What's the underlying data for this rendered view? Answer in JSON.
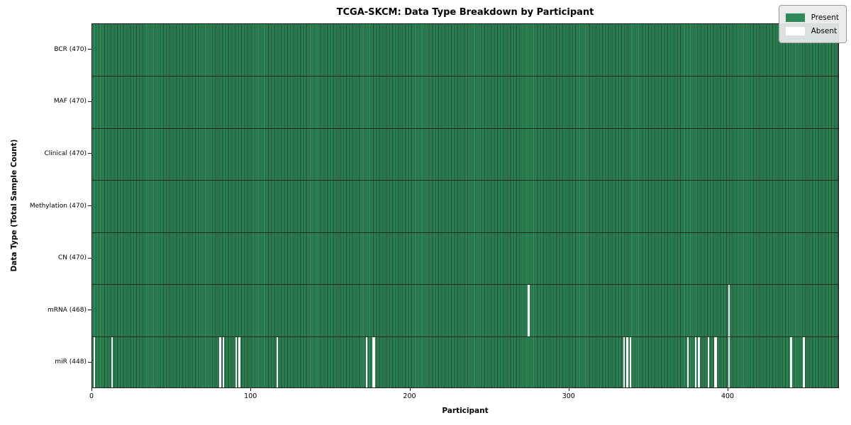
{
  "chart_data": {
    "type": "heatmap",
    "title": "TCGA-SKCM: Data Type Breakdown by Participant",
    "xlabel": "Participant",
    "ylabel": "Data Type (Total Sample Count)",
    "n_participants": 470,
    "xlim": [
      0,
      470
    ],
    "x_ticks": [
      0,
      100,
      200,
      300,
      400
    ],
    "grid": false,
    "colors": {
      "present": "#2e8b57",
      "absent": "#ffffff",
      "cell_edge": "#1f4630"
    },
    "legend": {
      "position": "upper right",
      "items": [
        {
          "label": "Present",
          "color": "#2e8b57"
        },
        {
          "label": "Absent",
          "color": "#ffffff"
        }
      ]
    },
    "rows": [
      {
        "data_type": "BCR",
        "label": "BCR (470)",
        "present_count": 470,
        "absent_participants": []
      },
      {
        "data_type": "MAF",
        "label": "MAF (470)",
        "present_count": 470,
        "absent_participants": []
      },
      {
        "data_type": "Clinical",
        "label": "Clinical (470)",
        "present_count": 470,
        "absent_participants": []
      },
      {
        "data_type": "Methylation",
        "label": "Methylation (470)",
        "present_count": 470,
        "absent_participants": []
      },
      {
        "data_type": "CN",
        "label": "CN (470)",
        "present_count": 470,
        "absent_participants": []
      },
      {
        "data_type": "mRNA",
        "label": "mRNA (468)",
        "present_count": 468,
        "absent_participants": [
          274,
          400
        ]
      },
      {
        "data_type": "miR",
        "label": "miR (448)",
        "present_count": 448,
        "absent_participants": [
          1,
          12,
          80,
          82,
          90,
          92,
          116,
          172,
          176,
          177,
          334,
          336,
          338,
          374,
          379,
          381,
          387,
          391,
          392,
          400,
          439,
          447
        ]
      }
    ]
  }
}
